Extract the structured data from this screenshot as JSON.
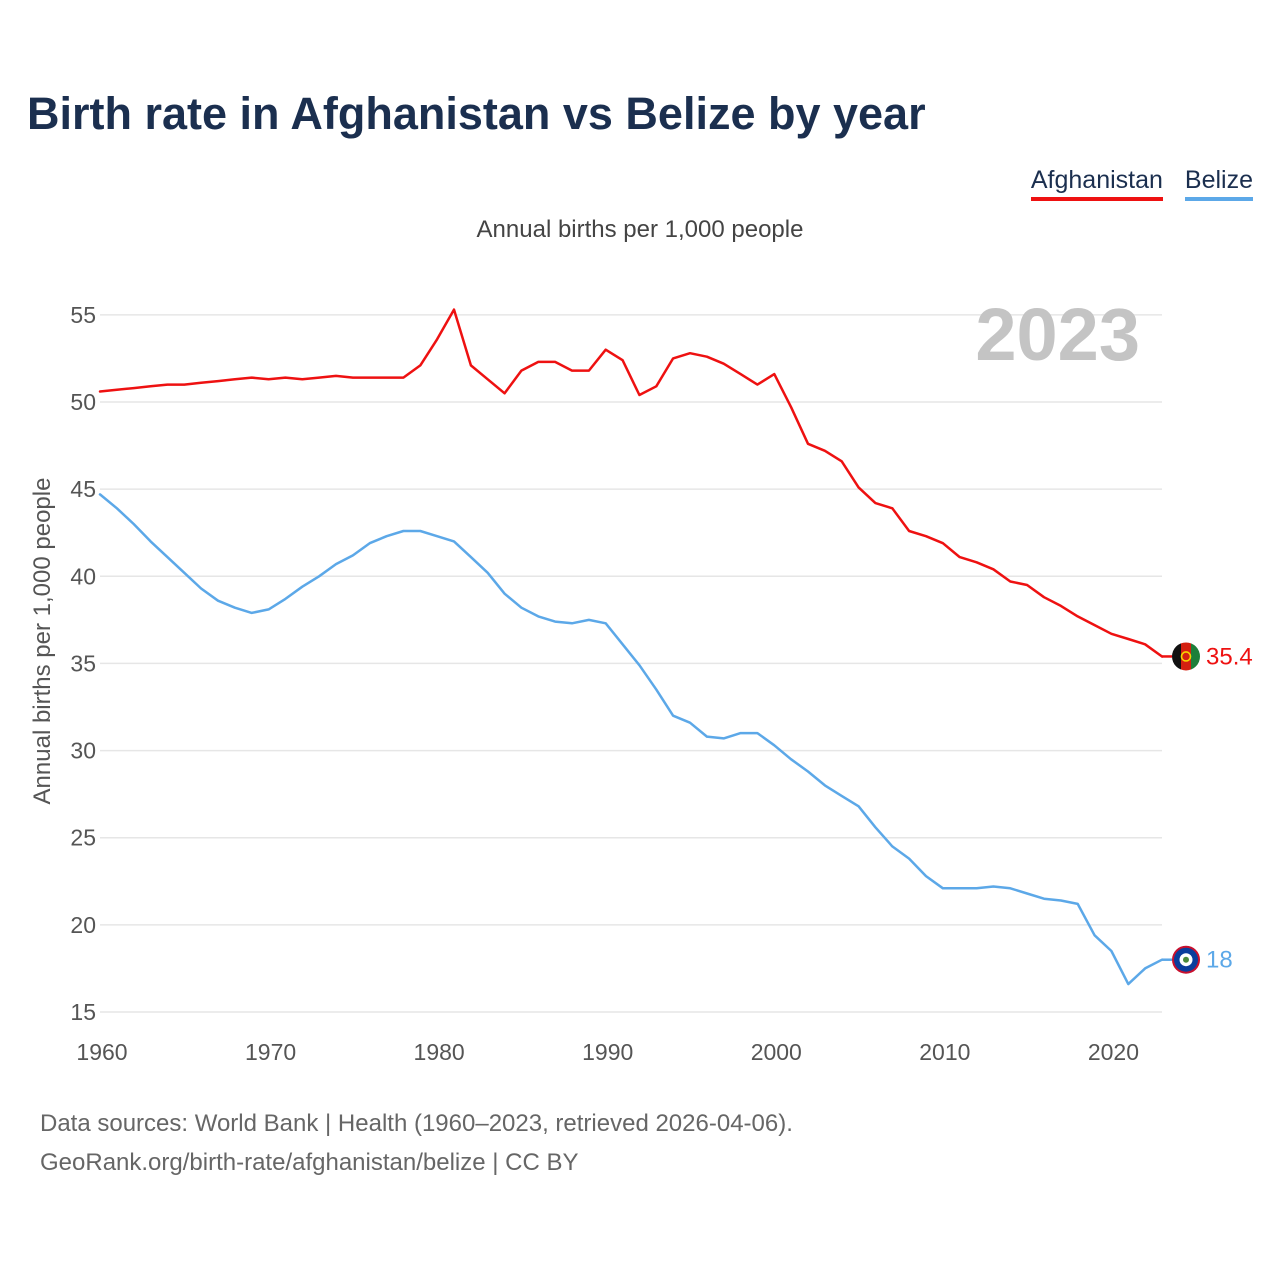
{
  "title": "Birth rate in Afghanistan vs Belize by year",
  "subtitle": "Annual births per 1,000 people",
  "legend": [
    {
      "label": "Afghanistan",
      "color": "#ee1111"
    },
    {
      "label": "Belize",
      "color": "#5ca8e8"
    }
  ],
  "footer": {
    "line1": "Data sources: World Bank | Health (1960–2023, retrieved 2026-04-06).",
    "line2": "GeoRank.org/birth-rate/afghanistan/belize | CC BY"
  },
  "chart_data": {
    "type": "line",
    "title": "Birth rate in Afghanistan vs Belize by year",
    "ylabel": "Annual births per 1,000 people",
    "xlabel": "",
    "xlim": [
      1960,
      2023
    ],
    "ylim": [
      15,
      57
    ],
    "yticks": [
      15,
      20,
      25,
      30,
      35,
      40,
      45,
      50,
      55
    ],
    "xticks": [
      1960,
      1970,
      1980,
      1990,
      2000,
      2010,
      2020
    ],
    "year_label": "2023",
    "grid": true,
    "x": [
      1960,
      1961,
      1962,
      1963,
      1964,
      1965,
      1966,
      1967,
      1968,
      1969,
      1970,
      1971,
      1972,
      1973,
      1974,
      1975,
      1976,
      1977,
      1978,
      1979,
      1980,
      1981,
      1982,
      1983,
      1984,
      1985,
      1986,
      1987,
      1988,
      1989,
      1990,
      1991,
      1992,
      1993,
      1994,
      1995,
      1996,
      1997,
      1998,
      1999,
      2000,
      2001,
      2002,
      2003,
      2004,
      2005,
      2006,
      2007,
      2008,
      2009,
      2010,
      2011,
      2012,
      2013,
      2014,
      2015,
      2016,
      2017,
      2018,
      2019,
      2020,
      2021,
      2022,
      2023
    ],
    "series": [
      {
        "name": "Afghanistan",
        "color": "#ee1111",
        "end_label": "35.4",
        "values": [
          50.6,
          50.7,
          50.8,
          50.9,
          51.0,
          51.0,
          51.1,
          51.2,
          51.3,
          51.4,
          51.3,
          51.4,
          51.3,
          51.4,
          51.5,
          51.4,
          51.4,
          51.4,
          51.4,
          52.1,
          53.6,
          55.3,
          52.1,
          51.3,
          50.5,
          51.8,
          52.3,
          52.3,
          51.8,
          51.8,
          53.0,
          52.4,
          50.4,
          50.9,
          52.5,
          52.8,
          52.6,
          52.2,
          51.6,
          51.0,
          51.6,
          49.7,
          47.6,
          47.2,
          46.6,
          45.1,
          44.2,
          43.9,
          42.6,
          42.3,
          41.9,
          41.1,
          40.8,
          40.4,
          39.7,
          39.5,
          38.8,
          38.3,
          37.7,
          37.2,
          36.7,
          36.4,
          36.1,
          35.4
        ]
      },
      {
        "name": "Belize",
        "color": "#5ca8e8",
        "end_label": "18",
        "values": [
          44.7,
          43.9,
          43.0,
          42.0,
          41.1,
          40.2,
          39.3,
          38.6,
          38.2,
          37.9,
          38.1,
          38.7,
          39.4,
          40.0,
          40.7,
          41.2,
          41.9,
          42.3,
          42.6,
          42.6,
          42.3,
          42.0,
          41.1,
          40.2,
          39.0,
          38.2,
          37.7,
          37.4,
          37.3,
          37.5,
          37.3,
          36.1,
          34.9,
          33.5,
          32.0,
          31.6,
          30.8,
          30.7,
          31.0,
          31.0,
          30.3,
          29.5,
          28.8,
          28.0,
          27.4,
          26.8,
          25.6,
          24.5,
          23.8,
          22.8,
          22.1,
          22.1,
          22.1,
          22.2,
          22.1,
          21.8,
          21.5,
          21.4,
          21.2,
          19.4,
          18.5,
          16.6,
          17.5,
          18.0
        ]
      }
    ]
  }
}
